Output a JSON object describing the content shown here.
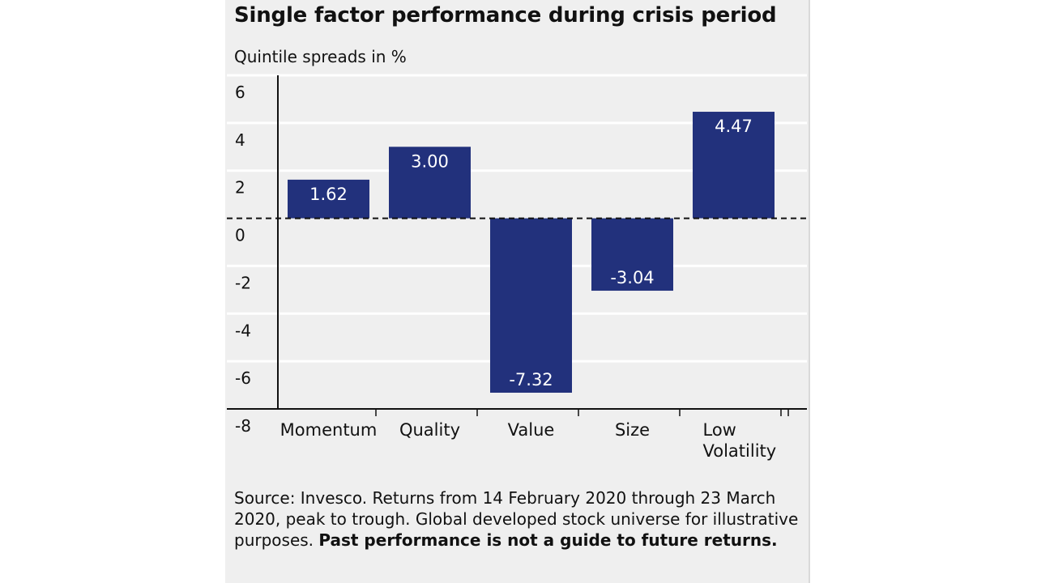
{
  "chart_data": {
    "type": "bar",
    "title": "Single factor performance during crisis period",
    "ylabel": "Quintile spreads in %",
    "xlabel": "",
    "categories": [
      "Momentum",
      "Quality",
      "Value",
      "Size",
      "Low Volatility"
    ],
    "category_lines": [
      [
        "Momentum"
      ],
      [
        "Quality"
      ],
      [
        "Value"
      ],
      [
        "Size"
      ],
      [
        "Low",
        "Volatility"
      ]
    ],
    "values": [
      1.62,
      3.0,
      -7.32,
      -3.04,
      4.47
    ],
    "value_labels": [
      "1.62",
      "3.00",
      "-7.32",
      "-3.04",
      "4.47"
    ],
    "ylim": [
      -8,
      6
    ],
    "yticks": [
      6,
      4,
      2,
      0,
      -2,
      -4,
      -6,
      -8
    ],
    "ytick_labels": [
      "6",
      "4",
      "2",
      "0",
      "-2",
      "-4",
      "-6",
      "-8"
    ],
    "grid": true,
    "zero_line": "dashed",
    "bar_color": "#22317c",
    "label_color": "#ffffff"
  },
  "footnote": {
    "text": "Source: Invesco. Returns from 14 February 2020 through 23 March 2020, peak to trough. Global developed stock universe for illustrative purposes. ",
    "bold": "Past performance is not a guide to future returns."
  }
}
